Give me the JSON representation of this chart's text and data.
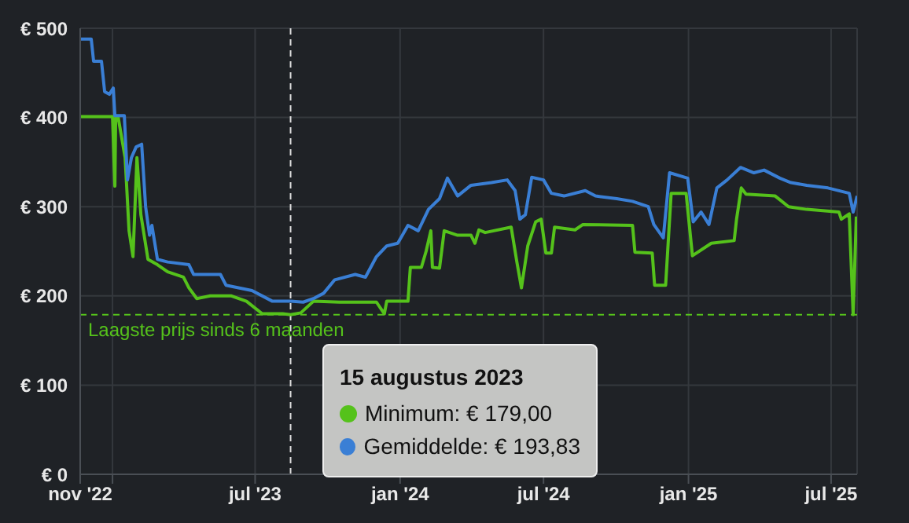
{
  "chart_data": {
    "type": "line",
    "grid": true,
    "legend": false,
    "marker": "none",
    "line_style": "solid",
    "xlim": [
      "2022-11-21",
      "2025-08-03"
    ],
    "xticks": [
      {
        "value": "2022-11-21",
        "label": "nov '22"
      },
      {
        "value": "2023-01-01",
        "label": null
      },
      {
        "value": "2023-07-01",
        "label": "jul '23"
      },
      {
        "value": "2024-01-01",
        "label": "jan '24"
      },
      {
        "value": "2024-07-01",
        "label": "jul '24"
      },
      {
        "value": "2025-01-01",
        "label": "jan '25"
      },
      {
        "value": "2025-07-01",
        "label": "jul '25"
      }
    ],
    "ylim": [
      0,
      500
    ],
    "yticks": [
      {
        "value": 0,
        "label": "€ 0"
      },
      {
        "value": 100,
        "label": "€ 100"
      },
      {
        "value": 200,
        "label": "€ 200"
      },
      {
        "value": 300,
        "label": "€ 300"
      },
      {
        "value": 400,
        "label": "€ 400"
      },
      {
        "value": 500,
        "label": "€ 500"
      }
    ],
    "series": [
      {
        "color": "#55c21b",
        "x": [
          "2022-11-21",
          "2023-01-01",
          "2023-01-04",
          "2023-01-05",
          "2023-01-08",
          "2023-01-17",
          "2023-01-22",
          "2023-01-27",
          "2023-02-01",
          "2023-02-06",
          "2023-02-15",
          "2023-02-27",
          "2023-03-12",
          "2023-04-01",
          "2023-04-08",
          "2023-04-18",
          "2023-05-05",
          "2023-06-01",
          "2023-06-20",
          "2023-07-10",
          "2023-08-05",
          "2023-08-15",
          "2023-08-28",
          "2023-09-13",
          "2023-10-16",
          "2023-12-02",
          "2023-12-12",
          "2023-12-15",
          "2024-01-11",
          "2024-01-14",
          "2024-01-28",
          "2024-02-03",
          "2024-02-09",
          "2024-02-11",
          "2024-02-20",
          "2024-02-26",
          "2024-03-14",
          "2024-03-31",
          "2024-04-05",
          "2024-04-10",
          "2024-04-18",
          "2024-05-21",
          "2024-05-28",
          "2024-06-03",
          "2024-06-11",
          "2024-06-21",
          "2024-06-28",
          "2024-07-04",
          "2024-07-11",
          "2024-07-15",
          "2024-08-10",
          "2024-08-20",
          "2024-10-22",
          "2024-10-25",
          "2024-11-16",
          "2024-11-19",
          "2024-12-03",
          "2024-12-10",
          "2024-12-29",
          "2025-01-06",
          "2025-01-30",
          "2025-02-28",
          "2025-03-03",
          "2025-03-09",
          "2025-03-15",
          "2025-04-21",
          "2025-05-08",
          "2025-05-31",
          "2025-07-11",
          "2025-07-14",
          "2025-07-24",
          "2025-07-29",
          "2025-08-02"
        ],
        "values": [
          401,
          401,
          323,
          400,
          401,
          355,
          273,
          244,
          355,
          291,
          241,
          235,
          227,
          221,
          209,
          197,
          200,
          200,
          194,
          180,
          180,
          179,
          181,
          194,
          193,
          193,
          180,
          194,
          194,
          232,
          232,
          250,
          273,
          232,
          231,
          273,
          268,
          268,
          259,
          274,
          271,
          277,
          239,
          209,
          256,
          283,
          286,
          248,
          248,
          277,
          274,
          280,
          279,
          249,
          248,
          212,
          212,
          315,
          315,
          245,
          259,
          262,
          286,
          321,
          314,
          312,
          300,
          297,
          294,
          286,
          292,
          179,
          289
        ]
      },
      {
        "color": "#3a7fd5",
        "x": [
          "2022-11-21",
          "2022-12-05",
          "2022-12-08",
          "2022-12-18",
          "2022-12-22",
          "2022-12-28",
          "2023-01-02",
          "2023-01-04",
          "2023-01-16",
          "2023-01-20",
          "2023-01-25",
          "2023-01-31",
          "2023-02-07",
          "2023-02-12",
          "2023-02-17",
          "2023-02-20",
          "2023-02-27",
          "2023-03-12",
          "2023-04-08",
          "2023-04-14",
          "2023-05-18",
          "2023-05-25",
          "2023-06-27",
          "2023-07-23",
          "2023-08-15",
          "2023-08-31",
          "2023-09-13",
          "2023-09-26",
          "2023-10-10",
          "2023-11-05",
          "2023-11-18",
          "2023-12-02",
          "2023-12-15",
          "2023-12-29",
          "2024-01-11",
          "2024-01-24",
          "2024-02-06",
          "2024-02-20",
          "2024-03-01",
          "2024-03-14",
          "2024-03-31",
          "2024-04-26",
          "2024-05-16",
          "2024-05-26",
          "2024-06-01",
          "2024-06-08",
          "2024-06-16",
          "2024-07-01",
          "2024-07-11",
          "2024-07-27",
          "2024-08-23",
          "2024-09-05",
          "2024-10-02",
          "2024-10-22",
          "2024-11-11",
          "2024-11-18",
          "2024-11-30",
          "2024-12-08",
          "2024-12-31",
          "2025-01-07",
          "2025-01-17",
          "2025-01-27",
          "2025-02-06",
          "2025-02-19",
          "2025-03-08",
          "2025-03-25",
          "2025-04-07",
          "2025-04-27",
          "2025-05-11",
          "2025-05-31",
          "2025-06-27",
          "2025-07-24",
          "2025-07-29",
          "2025-08-03"
        ],
        "values": [
          488,
          488,
          463,
          463,
          429,
          426,
          433,
          402,
          402,
          330,
          355,
          367,
          370,
          300,
          268,
          279,
          241,
          238,
          235,
          224,
          224,
          212,
          206,
          194,
          194,
          193,
          197,
          203,
          218,
          224,
          221,
          244,
          256,
          259,
          279,
          273,
          297,
          309,
          332,
          312,
          324,
          327,
          330,
          318,
          286,
          291,
          333,
          330,
          315,
          312,
          318,
          312,
          309,
          306,
          300,
          280,
          265,
          338,
          332,
          283,
          294,
          280,
          321,
          330,
          344,
          338,
          341,
          332,
          327,
          324,
          321,
          315,
          294,
          312
        ]
      }
    ],
    "ref_lines": [
      {
        "axis": "y",
        "value": 179,
        "label": "Laagste prijs sinds 6 maanden",
        "color": "#55c21b",
        "line_style": "dashed"
      },
      {
        "axis": "x",
        "value": "2023-08-15",
        "label": null,
        "color": "#dddddd",
        "line_style": "dashed"
      }
    ],
    "annotations": [
      "15 augustus 2023",
      "Minimum: € 179,00",
      "Gemiddelde: € 193,83"
    ]
  }
}
